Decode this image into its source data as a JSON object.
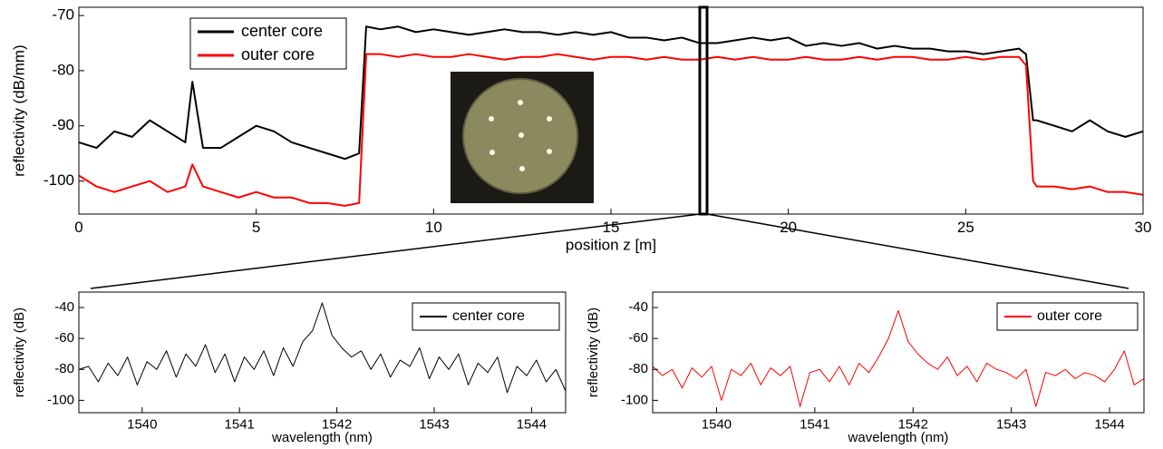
{
  "chart_data": [
    {
      "type": "line",
      "xlabel": "position z [m]",
      "ylabel": "reflectivity (dB/mm)",
      "x": [
        0,
        0.5,
        1,
        1.5,
        2,
        2.5,
        3,
        3.2,
        3.5,
        4,
        4.5,
        5,
        5.5,
        6,
        6.5,
        7,
        7.5,
        7.9,
        8.1,
        8.5,
        9,
        9.5,
        10,
        10.5,
        11,
        11.5,
        12,
        12.5,
        13,
        13.5,
        14,
        14.5,
        15,
        15.5,
        16,
        16.5,
        17,
        17.5,
        18,
        18.5,
        19,
        19.5,
        20,
        20.5,
        21,
        21.5,
        22,
        22.5,
        23,
        23.5,
        24,
        24.5,
        25,
        25.5,
        26,
        26.5,
        26.7,
        26.9,
        27,
        27.5,
        28,
        28.5,
        29,
        29.5,
        30
      ],
      "series": [
        {
          "name": "center core",
          "color": "#000000",
          "values": [
            -93,
            -94,
            -91,
            -92,
            -89,
            -91,
            -93,
            -82,
            -94,
            -94,
            -92,
            -90,
            -91,
            -93,
            -94,
            -95,
            -96,
            -95,
            -72,
            -72.5,
            -72,
            -73,
            -72.5,
            -73,
            -73.5,
            -73,
            -72.5,
            -73,
            -73,
            -73.5,
            -73,
            -73.5,
            -73,
            -74,
            -74,
            -74.5,
            -74,
            -75,
            -75,
            -74.5,
            -74,
            -74.5,
            -74,
            -75.5,
            -75,
            -75.5,
            -75,
            -76,
            -75.5,
            -76,
            -76,
            -76.5,
            -76.5,
            -77,
            -76.5,
            -76,
            -77,
            -89,
            -89,
            -90,
            -91,
            -89,
            -91,
            -92,
            -91
          ]
        },
        {
          "name": "outer core",
          "color": "#ff0000",
          "values": [
            -99,
            -101,
            -102,
            -101,
            -100,
            -102,
            -101,
            -97,
            -101,
            -102,
            -103,
            -102,
            -103,
            -103,
            -104,
            -104,
            -104.5,
            -104,
            -77,
            -77,
            -77.5,
            -77,
            -77.5,
            -77.5,
            -77,
            -77.5,
            -78,
            -77.5,
            -77.5,
            -77,
            -77.5,
            -78,
            -77.5,
            -77.5,
            -78,
            -77.5,
            -78,
            -78,
            -77.5,
            -78,
            -77.5,
            -78,
            -78,
            -77.5,
            -78,
            -78,
            -77.5,
            -78,
            -77.5,
            -77.5,
            -78,
            -78,
            -77.5,
            -78,
            -77.5,
            -77.5,
            -79,
            -100,
            -101,
            -101,
            -101.5,
            -101,
            -102,
            -102,
            -102.5
          ]
        }
      ],
      "xlim": [
        0,
        30
      ],
      "xticks": [
        0,
        5,
        10,
        15,
        20,
        25,
        30
      ],
      "ylim": [
        -106,
        -68.5
      ],
      "yticks": [
        -70,
        -80,
        -90,
        -100
      ],
      "grid": false,
      "legend": "upper left"
    },
    {
      "type": "line",
      "xlabel": "wavelength (nm)",
      "ylabel": "reflectivity (dB)",
      "x": [
        1539.35,
        1539.45,
        1539.55,
        1539.65,
        1539.75,
        1539.85,
        1539.95,
        1540.05,
        1540.15,
        1540.25,
        1540.35,
        1540.45,
        1540.55,
        1540.65,
        1540.75,
        1540.85,
        1540.95,
        1541.05,
        1541.15,
        1541.25,
        1541.35,
        1541.45,
        1541.55,
        1541.65,
        1541.75,
        1541.85,
        1541.95,
        1542.05,
        1542.15,
        1542.25,
        1542.35,
        1542.45,
        1542.55,
        1542.65,
        1542.75,
        1542.85,
        1542.95,
        1543.05,
        1543.15,
        1543.25,
        1543.35,
        1543.45,
        1543.55,
        1543.65,
        1543.75,
        1543.85,
        1543.95,
        1544.05,
        1544.15,
        1544.25,
        1544.35
      ],
      "series": [
        {
          "name": "center core",
          "color": "#000000",
          "values": [
            -80,
            -78,
            -88,
            -76,
            -84,
            -72,
            -90,
            -75,
            -80,
            -68,
            -85,
            -70,
            -78,
            -64,
            -82,
            -70,
            -88,
            -72,
            -80,
            -68,
            -84,
            -66,
            -78,
            -62,
            -55,
            -37,
            -58,
            -66,
            -72,
            -68,
            -80,
            -70,
            -85,
            -74,
            -78,
            -66,
            -86,
            -72,
            -80,
            -70,
            -90,
            -76,
            -82,
            -72,
            -95,
            -78,
            -84,
            -74,
            -88,
            -80,
            -94
          ]
        }
      ],
      "xlim": [
        1539.35,
        1544.35
      ],
      "xticks": [
        1540,
        1541,
        1542,
        1543,
        1544
      ],
      "ylim": [
        -108,
        -30
      ],
      "yticks": [
        -40,
        -60,
        -80,
        -100
      ],
      "grid": false,
      "legend": "upper right"
    },
    {
      "type": "line",
      "xlabel": "wavelength (nm)",
      "ylabel": "reflectivity (dB)",
      "x": [
        1539.35,
        1539.45,
        1539.55,
        1539.65,
        1539.75,
        1539.85,
        1539.95,
        1540.05,
        1540.15,
        1540.25,
        1540.35,
        1540.45,
        1540.55,
        1540.65,
        1540.75,
        1540.85,
        1540.95,
        1541.05,
        1541.15,
        1541.25,
        1541.35,
        1541.45,
        1541.55,
        1541.65,
        1541.75,
        1541.85,
        1541.95,
        1542.05,
        1542.15,
        1542.25,
        1542.35,
        1542.45,
        1542.55,
        1542.65,
        1542.75,
        1542.85,
        1542.95,
        1543.05,
        1543.15,
        1543.25,
        1543.35,
        1543.45,
        1543.55,
        1543.65,
        1543.75,
        1543.85,
        1543.95,
        1544.05,
        1544.15,
        1544.25,
        1544.35
      ],
      "series": [
        {
          "name": "outer core",
          "color": "#ff0000",
          "values": [
            -78,
            -84,
            -80,
            -92,
            -79,
            -85,
            -78,
            -100,
            -80,
            -84,
            -76,
            -90,
            -79,
            -84,
            -78,
            -104,
            -82,
            -80,
            -88,
            -78,
            -90,
            -76,
            -82,
            -72,
            -60,
            -42,
            -62,
            -70,
            -76,
            -80,
            -72,
            -84,
            -78,
            -88,
            -76,
            -80,
            -82,
            -86,
            -80,
            -104,
            -82,
            -84,
            -80,
            -86,
            -82,
            -84,
            -88,
            -80,
            -68,
            -90,
            -86
          ]
        }
      ],
      "xlim": [
        1539.35,
        1544.35
      ],
      "xticks": [
        1540,
        1541,
        1542,
        1543,
        1544
      ],
      "ylim": [
        -108,
        -30
      ],
      "yticks": [
        -40,
        -60,
        -80,
        -100
      ],
      "grid": false,
      "legend": "upper right"
    }
  ]
}
